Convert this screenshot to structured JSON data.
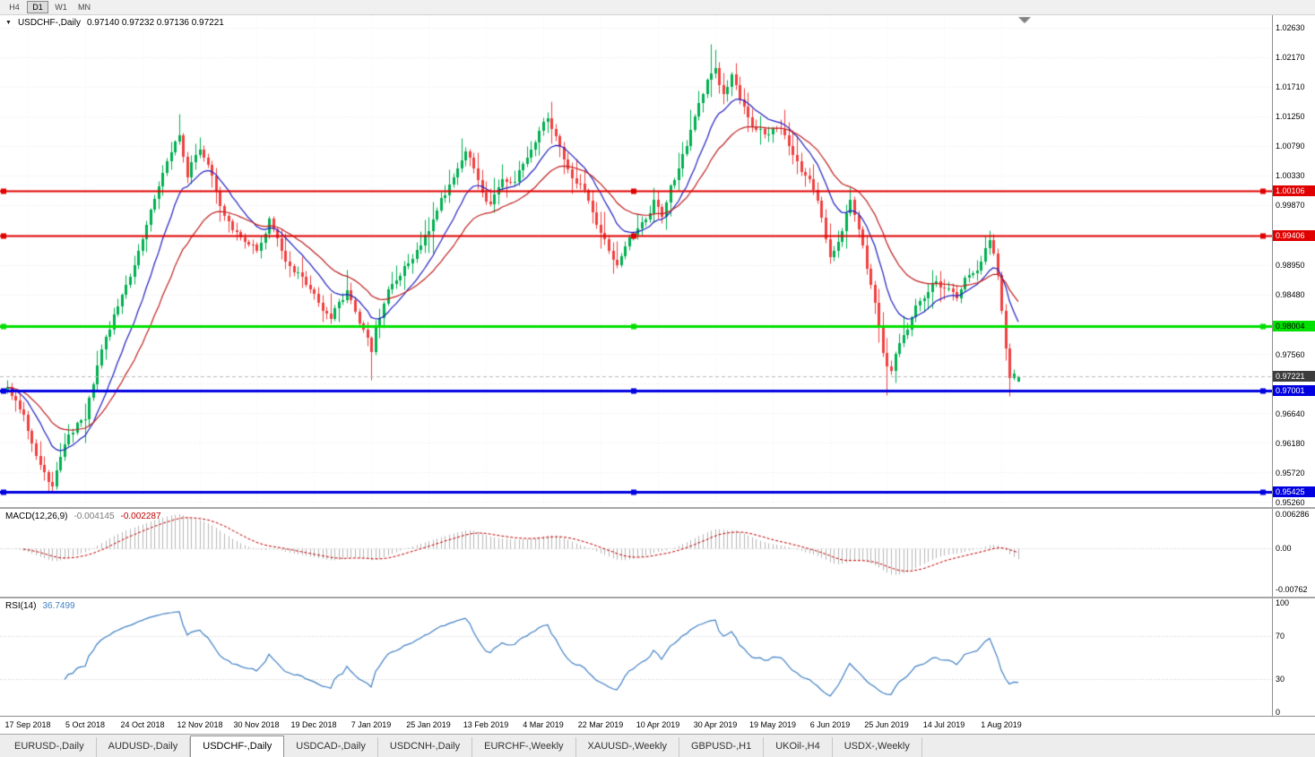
{
  "icons": {
    "dropdown": "▼"
  },
  "toolbar": {
    "timeframes": [
      {
        "label": "H4",
        "active": false
      },
      {
        "label": "D1",
        "active": true
      },
      {
        "label": "W1",
        "active": false
      },
      {
        "label": "MN",
        "active": false
      }
    ]
  },
  "chart": {
    "title_symbol": "USDCHF-,Daily",
    "ohlc": "0.97140 0.97232 0.97136 0.97221"
  },
  "price_axis": {
    "labels": [
      {
        "text": "1.02630",
        "value": 1.0263
      },
      {
        "text": "1.02170",
        "value": 1.0217
      },
      {
        "text": "1.01710",
        "value": 1.0171
      },
      {
        "text": "1.01250",
        "value": 1.0125
      },
      {
        "text": "1.00790",
        "value": 1.0079
      },
      {
        "text": "1.00330",
        "value": 1.0033
      },
      {
        "text": "0.99870",
        "value": 0.9987
      },
      {
        "text": "0.98950",
        "value": 0.9895
      },
      {
        "text": "0.98480",
        "value": 0.9848
      },
      {
        "text": "0.97560",
        "value": 0.9756
      },
      {
        "text": "0.96640",
        "value": 0.9664
      },
      {
        "text": "0.96180",
        "value": 0.9618
      },
      {
        "text": "0.95720",
        "value": 0.9572
      },
      {
        "text": "0.95260",
        "value": 0.9526
      }
    ],
    "badges": [
      {
        "text": "1.00106",
        "value": 1.00106,
        "bg": "#e00000",
        "fg": "#ffffff"
      },
      {
        "text": "0.99406",
        "value": 0.99406,
        "bg": "#e00000",
        "fg": "#ffffff"
      },
      {
        "text": "0.98004",
        "value": 0.98004,
        "bg": "#00e000",
        "fg": "#000000"
      },
      {
        "text": "0.97221",
        "value": 0.97221,
        "bg": "#3c3c3c",
        "fg": "#ffffff"
      },
      {
        "text": "0.97001",
        "value": 0.97001,
        "bg": "#0000e0",
        "fg": "#ffffff"
      },
      {
        "text": "0.95425",
        "value": 0.95425,
        "bg": "#0000e0",
        "fg": "#ffffff"
      }
    ]
  },
  "macd": {
    "label": "MACD(12,26,9)",
    "value1": "-0.004145",
    "value2": "-0.002287",
    "axis": [
      {
        "text": "0.006286",
        "value": 0.006286
      },
      {
        "text": "0.00",
        "value": 0
      },
      {
        "text": "-0.00762",
        "value": -0.00762
      }
    ]
  },
  "rsi": {
    "label": "RSI(14)",
    "value": "36.7499",
    "axis": [
      {
        "text": "100",
        "value": 100
      },
      {
        "text": "70",
        "value": 70
      },
      {
        "text": "30",
        "value": 30
      },
      {
        "text": "0",
        "value": 0
      }
    ],
    "levels": [
      70,
      30
    ]
  },
  "time_axis": {
    "labels": [
      "17 Sep 2018",
      "5 Oct 2018",
      "24 Oct 2018",
      "12 Nov 2018",
      "30 Nov 2018",
      "19 Dec 2018",
      "7 Jan 2019",
      "25 Jan 2019",
      "13 Feb 2019",
      "4 Mar 2019",
      "22 Mar 2019",
      "10 Apr 2019",
      "30 Apr 2019",
      "19 May 2019",
      "6 Jun 2019",
      "25 Jun 2019",
      "14 Jul 2019",
      "1 Aug 2019"
    ],
    "first_index": 5,
    "step": 14
  },
  "tabs": {
    "items": [
      {
        "label": "EURUSD-,Daily"
      },
      {
        "label": "AUDUSD-,Daily"
      },
      {
        "label": "USDCHF-,Daily"
      },
      {
        "label": "USDCAD-,Daily"
      },
      {
        "label": "USDCNH-,Daily"
      },
      {
        "label": "EURCHF-,Weekly"
      },
      {
        "label": "XAUUSD-,Weekly"
      },
      {
        "label": "GBPUSD-,H1"
      },
      {
        "label": "UKOil-,H4"
      },
      {
        "label": "USDX-,Weekly"
      }
    ],
    "active_index": 2
  },
  "colors": {
    "candle_up": "#00b050",
    "candle_down": "#f04040",
    "ma_fast": "#2020c0",
    "ma_slow": "#c02020",
    "grid": "#ececec",
    "grid_vertical": "#f0f0f0",
    "current_price_line": "#bcbcbc",
    "macd_hist": "#b6b6b6",
    "macd_signal": "#c00000",
    "rsi_line": "#4080c4",
    "indicator_grid": "#c8c8c8",
    "shift_marker": "#808080"
  },
  "chart_data": {
    "type": "candlestick",
    "symbol": "USDCHF-",
    "timeframe": "Daily",
    "candle_count": 248,
    "current_bar": {
      "open": 0.9714,
      "high": 0.97232,
      "low": 0.97136,
      "close": 0.97221
    },
    "price_axis_range": [
      0.9526,
      1.0263
    ],
    "indicators": [
      {
        "name": "MACD",
        "params": [
          12,
          26,
          9
        ],
        "current_main": -0.004145,
        "current_signal": -0.002287,
        "axis_range": [
          -0.00762,
          0.006286
        ]
      },
      {
        "name": "RSI",
        "params": [
          14
        ],
        "current": 36.7499,
        "axis_range": [
          0,
          100
        ],
        "levels": [
          70,
          30
        ]
      }
    ],
    "moving_averages": [
      {
        "type": "EMA",
        "period": 12,
        "color": "#2020c0"
      },
      {
        "type": "EMA",
        "period": 26,
        "color": "#c02020"
      }
    ],
    "horizontal_lines": [
      {
        "price": 1.00106,
        "color": "#e00000",
        "width": 2
      },
      {
        "price": 0.99406,
        "color": "#e00000",
        "width": 2
      },
      {
        "price": 0.98004,
        "color": "#00e000",
        "width": 3
      },
      {
        "price": 0.97001,
        "color": "#0000e0",
        "width": 3
      },
      {
        "price": 0.95425,
        "color": "#0000e0",
        "width": 3
      }
    ],
    "price_path_waypoints": [
      [
        0,
        0.9705
      ],
      [
        4,
        0.9668
      ],
      [
        8,
        0.9582
      ],
      [
        11,
        0.955
      ],
      [
        14,
        0.962
      ],
      [
        19,
        0.966
      ],
      [
        24,
        0.979
      ],
      [
        28,
        0.986
      ],
      [
        31,
        0.991
      ],
      [
        33,
        0.9955
      ],
      [
        36,
        1.001
      ],
      [
        39,
        1.007
      ],
      [
        42,
        1.0105
      ],
      [
        44,
        1.003
      ],
      [
        47,
        1.0075
      ],
      [
        50,
        1.004
      ],
      [
        53,
        0.9985
      ],
      [
        57,
        0.994
      ],
      [
        61,
        0.9925
      ],
      [
        64,
        0.997
      ],
      [
        68,
        0.9905
      ],
      [
        72,
        0.9885
      ],
      [
        75,
        0.986
      ],
      [
        79,
        0.9815
      ],
      [
        83,
        0.985
      ],
      [
        86,
        0.98
      ],
      [
        89,
        0.976
      ],
      [
        90,
        0.9795
      ],
      [
        93,
        0.9855
      ],
      [
        97,
        0.9885
      ],
      [
        101,
        0.993
      ],
      [
        104,
        0.996
      ],
      [
        108,
        1.001
      ],
      [
        112,
        1.0055
      ],
      [
        115,
        1.002
      ],
      [
        118,
        0.9985
      ],
      [
        121,
        1.0025
      ],
      [
        124,
        1.0015
      ],
      [
        127,
        1.005
      ],
      [
        130,
        1.0095
      ],
      [
        132,
        1.011
      ],
      [
        135,
        1.006
      ],
      [
        138,
        1.0015
      ],
      [
        141,
        1.0005
      ],
      [
        144,
        0.995
      ],
      [
        147,
        0.9905
      ],
      [
        149,
        0.989
      ],
      [
        152,
        0.9935
      ],
      [
        155,
        0.9965
      ],
      [
        158,
        0.9995
      ],
      [
        160,
        0.998
      ],
      [
        163,
        1.003
      ],
      [
        166,
        1.0075
      ],
      [
        169,
        1.013
      ],
      [
        171,
        1.0175
      ],
      [
        173,
        1.0205
      ],
      [
        175,
        1.0165
      ],
      [
        177,
        1.019
      ],
      [
        180,
        1.014
      ],
      [
        183,
        1.0105
      ],
      [
        186,
        1.009
      ],
      [
        189,
        1.011
      ],
      [
        192,
        1.007
      ],
      [
        195,
        1.003
      ],
      [
        198,
        0.999
      ],
      [
        201,
        0.991
      ],
      [
        204,
        0.9955
      ],
      [
        206,
        1.0
      ],
      [
        208,
        0.996
      ],
      [
        210,
        0.99
      ],
      [
        212,
        0.984
      ],
      [
        214,
        0.976
      ],
      [
        216,
        0.973
      ],
      [
        218,
        0.9775
      ],
      [
        220,
        0.9805
      ],
      [
        223,
        0.9845
      ],
      [
        226,
        0.9875
      ],
      [
        229,
        0.9855
      ],
      [
        232,
        0.9835
      ],
      [
        235,
        0.987
      ],
      [
        238,
        0.9905
      ],
      [
        240,
        0.993
      ],
      [
        242,
        0.9875
      ],
      [
        243,
        0.982
      ],
      [
        244,
        0.976
      ],
      [
        245,
        0.971
      ],
      [
        246,
        0.9722
      ],
      [
        247,
        0.97221
      ]
    ],
    "forced_bars": {
      "10": {
        "low": 0.9543
      },
      "42": {
        "high": 1.013
      },
      "89": {
        "low": 0.9716
      },
      "172": {
        "high": 1.0238
      },
      "173": {
        "high": 1.023
      },
      "206": {
        "high": 1.0015
      },
      "215": {
        "low": 0.9693
      },
      "239": {
        "high": 0.9941
      },
      "245": {
        "low": 0.9692
      },
      "247": {
        "open": 0.9714,
        "high": 0.97232,
        "low": 0.97136,
        "close": 0.97221
      }
    }
  }
}
